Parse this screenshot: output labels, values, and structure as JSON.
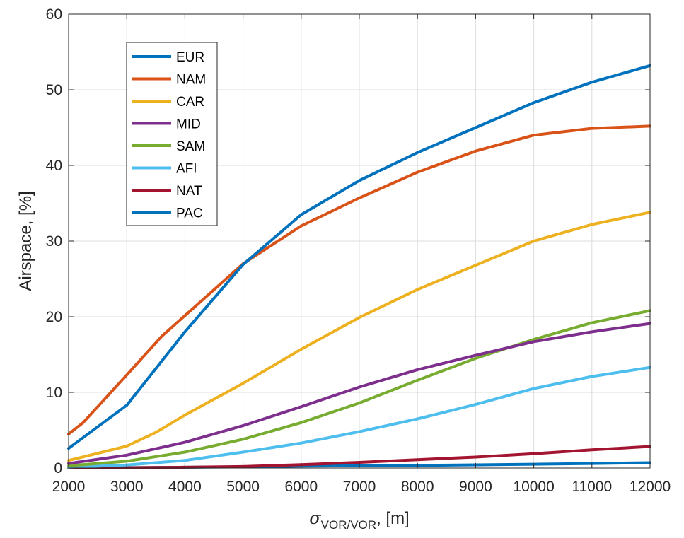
{
  "chart_data": {
    "type": "line",
    "title": "",
    "xlabel": {
      "sigma": "σ",
      "subscript": "VOR/VOR",
      "suffix": ", [m]"
    },
    "ylabel": "Airspace, [%]",
    "xlim": [
      2000,
      12000
    ],
    "ylim": [
      0,
      60
    ],
    "xticks": [
      2000,
      3000,
      4000,
      5000,
      6000,
      7000,
      8000,
      9000,
      10000,
      11000,
      12000
    ],
    "yticks": [
      0,
      10,
      20,
      30,
      40,
      50,
      60
    ],
    "grid": true,
    "legend_location": "top-left",
    "series": [
      {
        "name": "EUR",
        "color": "#0072BD",
        "x": [
          2000,
          3000,
          4000,
          5000,
          6000,
          7000,
          8000,
          9000,
          10000,
          11000,
          12000
        ],
        "y": [
          2.6,
          8.3,
          18,
          26.9,
          33.5,
          38,
          41.7,
          45,
          48.3,
          51,
          53.2
        ]
      },
      {
        "name": "NAM",
        "color": "#D95319",
        "x": [
          2000,
          2250,
          3000,
          3600,
          4200,
          5000,
          6000,
          7000,
          8000,
          9000,
          10000,
          11000,
          12000
        ],
        "y": [
          4.5,
          6,
          12.3,
          17.4,
          21.5,
          27,
          32,
          35.7,
          39.1,
          41.9,
          44,
          44.9,
          45.2
        ]
      },
      {
        "name": "CAR",
        "color": "#EDB120",
        "x": [
          2000,
          3000,
          3500,
          4000,
          5000,
          6000,
          7000,
          8000,
          9000,
          10000,
          11000,
          12000
        ],
        "y": [
          1,
          2.9,
          4.7,
          7,
          11.2,
          15.7,
          19.9,
          23.6,
          26.8,
          30,
          32.2,
          33.8
        ]
      },
      {
        "name": "MID",
        "color": "#7E2F8E",
        "x": [
          2000,
          3000,
          4000,
          5000,
          6000,
          7000,
          8000,
          9000,
          10000,
          11000,
          12000
        ],
        "y": [
          0.6,
          1.7,
          3.4,
          5.6,
          8.1,
          10.7,
          13,
          14.9,
          16.7,
          18,
          19.1
        ]
      },
      {
        "name": "SAM",
        "color": "#77AC30",
        "x": [
          2000,
          3000,
          4000,
          5000,
          6000,
          7000,
          8000,
          9000,
          10000,
          11000,
          12000
        ],
        "y": [
          0.3,
          0.9,
          2.1,
          3.8,
          6,
          8.6,
          11.6,
          14.5,
          17,
          19.2,
          20.8
        ]
      },
      {
        "name": "AFI",
        "color": "#4DBEEE",
        "x": [
          2000,
          3000,
          4000,
          5000,
          6000,
          7000,
          8000,
          9000,
          10000,
          11000,
          12000
        ],
        "y": [
          0.1,
          0.4,
          1,
          2.1,
          3.3,
          4.8,
          6.5,
          8.4,
          10.5,
          12.1,
          13.3
        ]
      },
      {
        "name": "NAT",
        "color": "#A2142F",
        "x": [
          2000,
          3000,
          4000,
          5000,
          6000,
          7000,
          8000,
          9000,
          10000,
          11000,
          12000
        ],
        "y": [
          0,
          0.05,
          0.1,
          0.2,
          0.45,
          0.75,
          1.1,
          1.45,
          1.9,
          2.4,
          2.85
        ]
      },
      {
        "name": "PAC",
        "color": "#0072BD",
        "x": [
          2000,
          3000,
          4000,
          5000,
          6000,
          7000,
          8000,
          9000,
          10000,
          11000,
          12000
        ],
        "y": [
          0,
          0.05,
          0.1,
          0.15,
          0.25,
          0.3,
          0.35,
          0.42,
          0.5,
          0.6,
          0.7
        ]
      }
    ]
  }
}
